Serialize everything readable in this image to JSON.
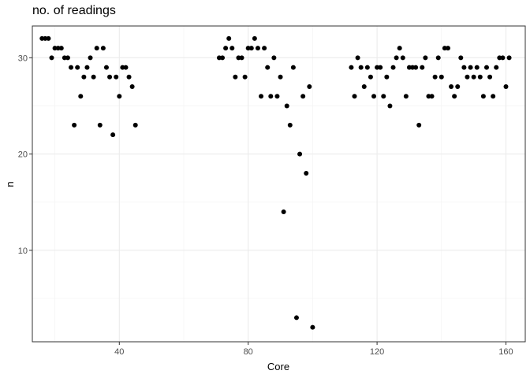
{
  "chart_data": {
    "type": "scatter",
    "title": "no. of readings",
    "xlabel": "Core",
    "ylabel": "n",
    "xlim": [
      13,
      166
    ],
    "ylim": [
      0.5,
      33.3
    ],
    "xticks": [
      40,
      80,
      120,
      160
    ],
    "yticks": [
      10,
      20,
      30
    ],
    "grid": true,
    "points": [
      [
        16,
        32
      ],
      [
        17,
        32
      ],
      [
        18,
        32
      ],
      [
        19,
        30
      ],
      [
        20,
        31
      ],
      [
        21,
        31
      ],
      [
        22,
        31
      ],
      [
        23,
        30
      ],
      [
        24,
        30
      ],
      [
        25,
        29
      ],
      [
        26,
        23
      ],
      [
        27,
        29
      ],
      [
        28,
        26
      ],
      [
        29,
        28
      ],
      [
        30,
        29
      ],
      [
        31,
        30
      ],
      [
        32,
        28
      ],
      [
        33,
        31
      ],
      [
        34,
        23
      ],
      [
        35,
        31
      ],
      [
        36,
        29
      ],
      [
        37,
        28
      ],
      [
        38,
        22
      ],
      [
        39,
        28
      ],
      [
        40,
        26
      ],
      [
        41,
        29
      ],
      [
        42,
        29
      ],
      [
        43,
        28
      ],
      [
        44,
        27
      ],
      [
        45,
        23
      ],
      [
        71,
        30
      ],
      [
        72,
        30
      ],
      [
        73,
        31
      ],
      [
        74,
        32
      ],
      [
        75,
        31
      ],
      [
        76,
        28
      ],
      [
        77,
        30
      ],
      [
        78,
        30
      ],
      [
        79,
        28
      ],
      [
        80,
        31
      ],
      [
        81,
        31
      ],
      [
        82,
        32
      ],
      [
        83,
        31
      ],
      [
        84,
        26
      ],
      [
        85,
        31
      ],
      [
        86,
        29
      ],
      [
        87,
        26
      ],
      [
        88,
        30
      ],
      [
        89,
        26
      ],
      [
        90,
        28
      ],
      [
        91,
        14
      ],
      [
        92,
        25
      ],
      [
        93,
        23
      ],
      [
        94,
        29
      ],
      [
        95,
        3
      ],
      [
        96,
        20
      ],
      [
        97,
        26
      ],
      [
        98,
        18
      ],
      [
        99,
        27
      ],
      [
        100,
        2
      ],
      [
        112,
        29
      ],
      [
        113,
        26
      ],
      [
        114,
        30
      ],
      [
        115,
        29
      ],
      [
        116,
        27
      ],
      [
        117,
        29
      ],
      [
        118,
        28
      ],
      [
        119,
        26
      ],
      [
        120,
        29
      ],
      [
        121,
        29
      ],
      [
        122,
        26
      ],
      [
        123,
        28
      ],
      [
        124,
        25
      ],
      [
        125,
        29
      ],
      [
        126,
        30
      ],
      [
        127,
        31
      ],
      [
        128,
        30
      ],
      [
        129,
        26
      ],
      [
        130,
        29
      ],
      [
        131,
        29
      ],
      [
        132,
        29
      ],
      [
        133,
        23
      ],
      [
        134,
        29
      ],
      [
        135,
        30
      ],
      [
        136,
        26
      ],
      [
        137,
        26
      ],
      [
        138,
        28
      ],
      [
        139,
        30
      ],
      [
        140,
        28
      ],
      [
        141,
        31
      ],
      [
        142,
        31
      ],
      [
        143,
        27
      ],
      [
        144,
        26
      ],
      [
        145,
        27
      ],
      [
        146,
        30
      ],
      [
        147,
        29
      ],
      [
        148,
        28
      ],
      [
        149,
        29
      ],
      [
        150,
        28
      ],
      [
        151,
        29
      ],
      [
        152,
        28
      ],
      [
        153,
        26
      ],
      [
        154,
        29
      ],
      [
        155,
        28
      ],
      [
        156,
        26
      ],
      [
        157,
        29
      ],
      [
        158,
        30
      ],
      [
        159,
        30
      ],
      [
        160,
        27
      ],
      [
        161,
        30
      ]
    ]
  }
}
